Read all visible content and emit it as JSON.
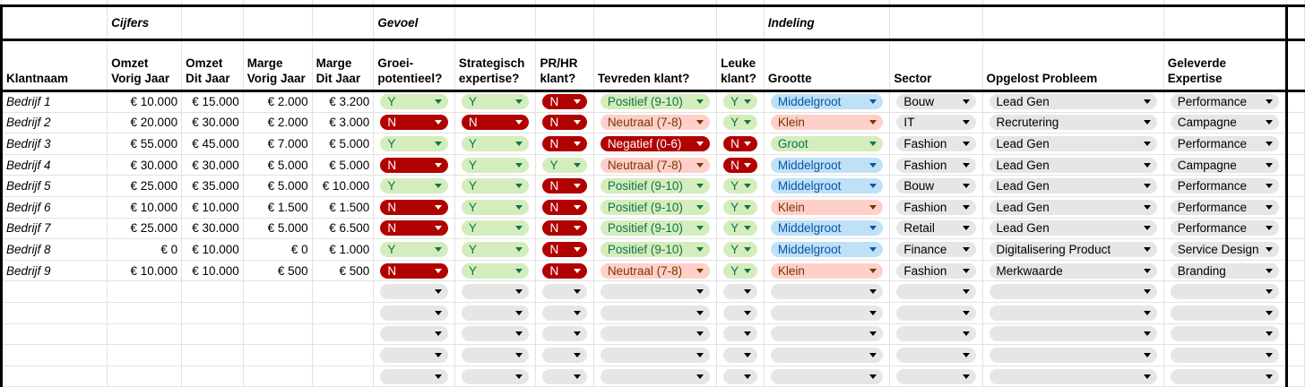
{
  "groups": {
    "cijfers": "Cijfers",
    "gevoel": "Gevoel",
    "indeling": "Indeling"
  },
  "columns": [
    "Klantnaam",
    "Omzet Vorig Jaar",
    "Omzet Dit Jaar",
    "Marge Vorig Jaar",
    "Marge Dit Jaar",
    "Groei-potentieel?",
    "Strategisch expertise?",
    "PR/HR klant?",
    "Tevreden klant?",
    "Leuke klant?",
    "Grootte",
    "Sector",
    "Opgelost Probleem",
    "Geleverde Expertise"
  ],
  "colors": {
    "green": "#d4edbc",
    "red": "#b10202",
    "orange": "#ffcfc9",
    "blue": "#bfe1f6",
    "gray": "#e6e6e6"
  },
  "rows": [
    [
      "Bedrijf 1",
      "€ 10.000",
      "€ 15.000",
      "€ 2.000",
      "€ 3.200",
      "Y",
      "Y",
      "N",
      "Positief (9-10)",
      "Y",
      "Middelgroot",
      "Bouw",
      "Lead Gen",
      "Performance"
    ],
    [
      "Bedrijf 2",
      "€ 20.000",
      "€ 30.000",
      "€ 2.000",
      "€ 3.000",
      "N",
      "N",
      "N",
      "Neutraal (7-8)",
      "Y",
      "Klein",
      "IT",
      "Recrutering",
      "Campagne"
    ],
    [
      "Bedrijf 3",
      "€ 55.000",
      "€ 45.000",
      "€ 7.000",
      "€ 5.000",
      "Y",
      "Y",
      "N",
      "Negatief (0-6)",
      "N",
      "Groot",
      "Fashion",
      "Lead Gen",
      "Performance"
    ],
    [
      "Bedrijf 4",
      "€ 30.000",
      "€ 30.000",
      "€ 5.000",
      "€ 5.000",
      "N",
      "Y",
      "Y",
      "Neutraal (7-8)",
      "N",
      "Middelgroot",
      "Fashion",
      "Lead Gen",
      "Campagne"
    ],
    [
      "Bedrijf 5",
      "€ 25.000",
      "€ 35.000",
      "€ 5.000",
      "€ 10.000",
      "Y",
      "Y",
      "N",
      "Positief (9-10)",
      "Y",
      "Middelgroot",
      "Bouw",
      "Lead Gen",
      "Performance"
    ],
    [
      "Bedrijf 6",
      "€ 10.000",
      "€ 10.000",
      "€ 1.500",
      "€ 1.500",
      "N",
      "Y",
      "N",
      "Positief (9-10)",
      "Y",
      "Klein",
      "Fashion",
      "Lead Gen",
      "Performance"
    ],
    [
      "Bedrijf 7",
      "€ 25.000",
      "€ 30.000",
      "€ 5.000",
      "€ 6.500",
      "N",
      "Y",
      "N",
      "Positief (9-10)",
      "Y",
      "Middelgroot",
      "Retail",
      "Lead Gen",
      "Performance"
    ],
    [
      "Bedrijf 8",
      "€ 0",
      "€ 10.000",
      "€ 0",
      "€ 1.000",
      "Y",
      "Y",
      "N",
      "Positief (9-10)",
      "Y",
      "Middelgroot",
      "Finance",
      "Digitalisering Product",
      "Service Design"
    ],
    [
      "Bedrijf 9",
      "€ 10.000",
      "€ 10.000",
      "€ 500",
      "€ 500",
      "N",
      "Y",
      "N",
      "Neutraal (7-8)",
      "Y",
      "Klein",
      "Fashion",
      "Merkwaarde",
      "Branding"
    ]
  ],
  "empty_rows": 5
}
